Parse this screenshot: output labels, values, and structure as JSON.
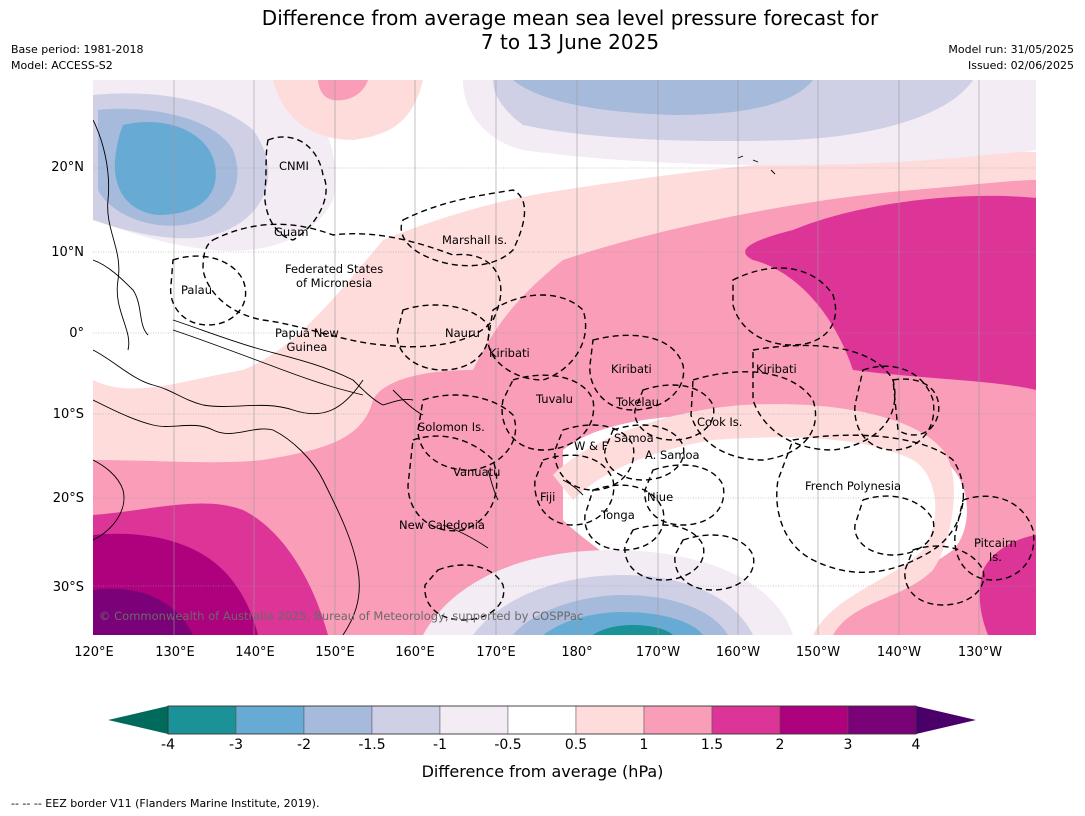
{
  "title_line1": "Difference from average mean sea level pressure forecast for",
  "title_line2": "7 to 13 June 2025",
  "base_period": "Base period: 1981-2018",
  "model": "Model: ACCESS-S2",
  "model_run": "Model run: 31/05/2025",
  "issued": "Issued: 02/06/2025",
  "lat_labels": [
    "20°N",
    "10°N",
    "0°",
    "10°S",
    "20°S",
    "30°S"
  ],
  "lon_labels": [
    "120°E",
    "130°E",
    "140°E",
    "150°E",
    "160°E",
    "170°E",
    "180°",
    "170°W",
    "160°W",
    "150°W",
    "140°W",
    "130°W"
  ],
  "places": {
    "cnmi": "CNMI",
    "guam": "Guam",
    "marshall": "Marshall Is.",
    "fsm1": "Federated States",
    "fsm2": "of Micronesia",
    "palau": "Palau",
    "png1": "Papua New",
    "png2": "Guinea",
    "nauru": "Nauru",
    "kiribati_w": "Kiribati",
    "kiribati_c": "Kiribati",
    "kiribati_e": "Kiribati",
    "tuvalu": "Tuvalu",
    "tokelau": "Tokelau",
    "cook": "Cook Is.",
    "solomon": "Solomon Is.",
    "samoa": "Samoa",
    "wf": "W & F",
    "asamoa": "A. Samoa",
    "vanuatu": "Vanuatu",
    "fiji": "Fiji",
    "niue": "Niue",
    "tonga": "Tonga",
    "newcal": "New Caledonia",
    "frenchpoly": "French Polynesia",
    "pitcairn1": "Pitcairn",
    "pitcairn2": "Is."
  },
  "copyright": "© Commonwealth of Australia 2025, Bureau of Meteorology, supported by COSPPac",
  "colorbar": {
    "ticks": [
      "-4",
      "-3",
      "-2",
      "-1.5",
      "-1",
      "-0.5",
      "0.5",
      "1",
      "1.5",
      "2",
      "3",
      "4"
    ],
    "colors": {
      "below_min": "#006b5a",
      "bins": [
        "#1a9298",
        "#67abd4",
        "#a6badb",
        "#cfd0e6",
        "#f3ecf4",
        "#ffffff",
        "#fedcdc",
        "#f99db8",
        "#dc3497",
        "#ad017e",
        "#7a0177"
      ],
      "above_max": "#4a006a"
    },
    "label": "Difference from average (hPa)"
  },
  "footnote": "--  --  -- EEZ border V11 (Flanders Marine Institute, 2019)."
}
